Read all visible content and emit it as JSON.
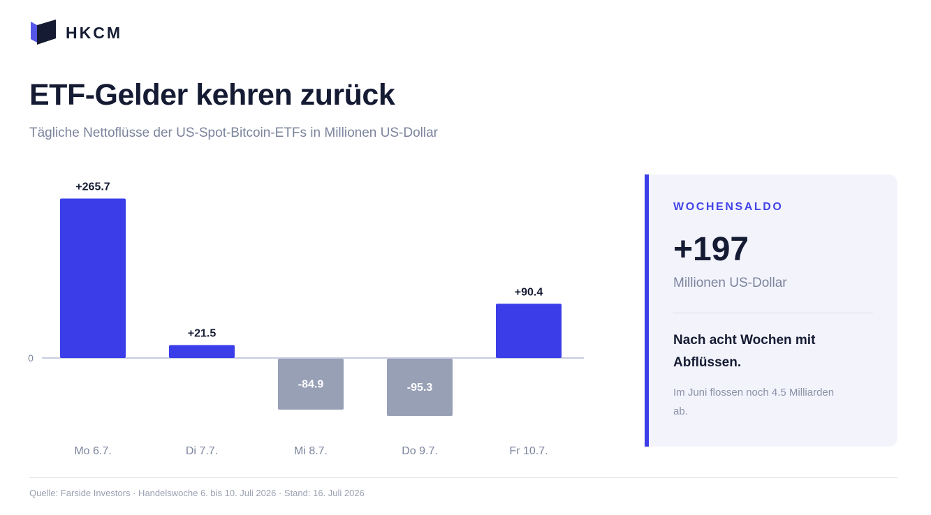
{
  "brand": {
    "name": "HKCM"
  },
  "title": "ETF-Gelder kehren zurück",
  "subtitle": "Tägliche Nettoflüsse der US-Spot-Bitcoin-ETFs in Millionen US-Dollar",
  "chart_data": {
    "type": "bar",
    "categories": [
      "Mo 6.7.",
      "Di 7.7.",
      "Mi 8.7.",
      "Do 9.7.",
      "Fr 10.7."
    ],
    "values": [
      265.7,
      21.5,
      -84.9,
      -95.3,
      90.4
    ],
    "data_labels": [
      "+265.7",
      "+21.5",
      "-84.9",
      "-95.3",
      "+90.4"
    ],
    "yticks": [
      "0"
    ],
    "ylim": [
      -95.3,
      265.7
    ],
    "title": "",
    "xlabel": "",
    "ylabel": "",
    "grid": false,
    "legend": "none",
    "colors": {
      "positive": "#3a3de8",
      "negative": "#98a0b6",
      "baseline": "#c8cce0"
    }
  },
  "summary": {
    "kicker": "WOCHENSALDO",
    "value": "+197",
    "unit": "Millionen US-Dollar",
    "headline": "Nach acht Wochen mit Abflüssen.",
    "note": "Im Juni flossen noch 4.5 Milliarden ab."
  },
  "footer": {
    "source": "Quelle: Farside Investors · Handelswoche 6. bis 10. Juli 2026 · Stand: 16. Juli 2026"
  },
  "colors": {
    "accent": "#3a3de8",
    "text": "#151b33",
    "muted": "#7b849c",
    "panel": "#f3f3fc"
  }
}
